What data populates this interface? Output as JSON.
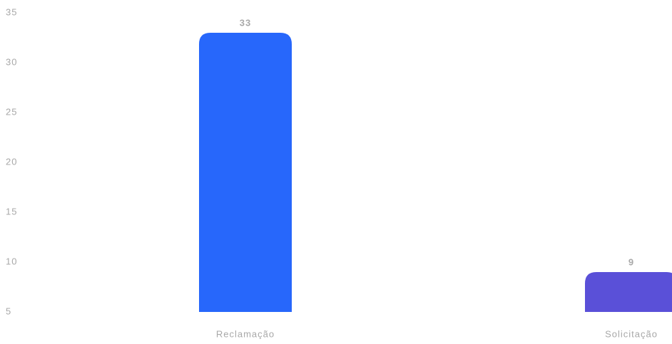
{
  "chart_data": {
    "type": "bar",
    "categories": [
      "Reclamação",
      "Solicitação"
    ],
    "values": [
      33,
      9
    ],
    "colors": [
      "#2767fb",
      "#5a50d8"
    ],
    "ylim": [
      5,
      35
    ],
    "yticks": [
      5,
      10,
      15,
      20,
      25,
      30,
      35
    ],
    "grid": false
  }
}
